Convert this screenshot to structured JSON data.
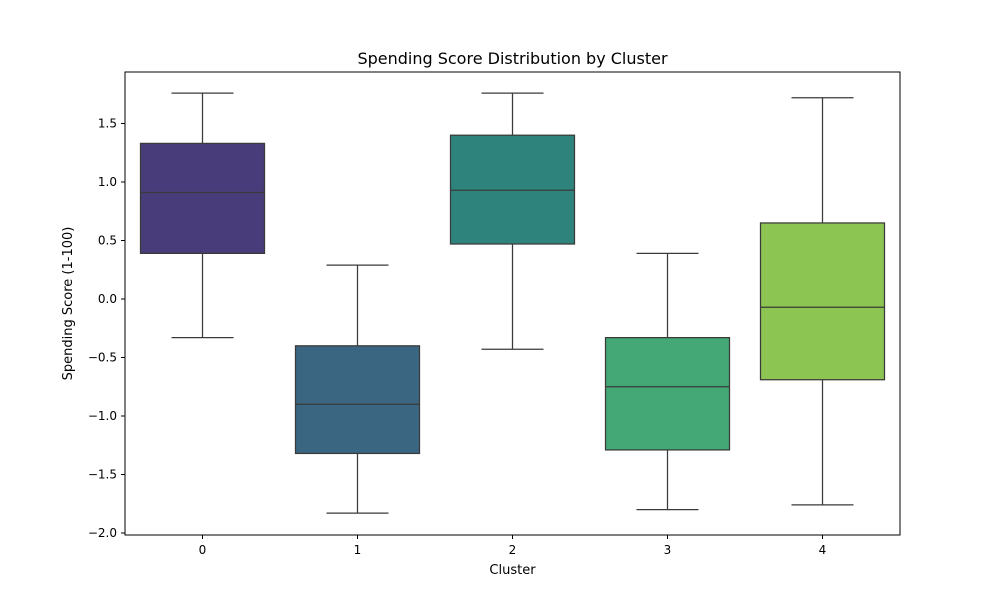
{
  "chart_data": {
    "type": "box",
    "title": "Spending Score Distribution by Cluster",
    "xlabel": "Cluster",
    "ylabel": "Spending Score (1-100)",
    "categories": [
      "0",
      "1",
      "2",
      "3",
      "4"
    ],
    "ylim": [
      -2.0,
      1.9
    ],
    "yticks": [
      1.5,
      1.0,
      0.5,
      0.0,
      -0.5,
      -1.0,
      -1.5,
      -2.0
    ],
    "ytick_labels": [
      "1.5",
      "1.0",
      "0.5",
      "0.0",
      "−0.5",
      "−1.0",
      "−1.5",
      "−2.0"
    ],
    "grid": false,
    "boxes": [
      {
        "category": "0",
        "whisker_low": -0.33,
        "q1": 0.39,
        "median": 0.91,
        "q3": 1.33,
        "whisker_high": 1.76,
        "color": "#483d7a"
      },
      {
        "category": "1",
        "whisker_low": -1.83,
        "q1": -1.32,
        "median": -0.9,
        "q3": -0.4,
        "whisker_high": 0.29,
        "color": "#3b6681"
      },
      {
        "category": "2",
        "whisker_low": -0.43,
        "q1": 0.47,
        "median": 0.93,
        "q3": 1.4,
        "whisker_high": 1.76,
        "color": "#2e847d"
      },
      {
        "category": "3",
        "whisker_low": -1.8,
        "q1": -1.29,
        "median": -0.75,
        "q3": -0.33,
        "whisker_high": 0.39,
        "color": "#44a776"
      },
      {
        "category": "4",
        "whisker_low": -1.76,
        "q1": -0.69,
        "median": -0.07,
        "q3": 0.65,
        "whisker_high": 1.72,
        "color": "#8cc552"
      }
    ]
  }
}
